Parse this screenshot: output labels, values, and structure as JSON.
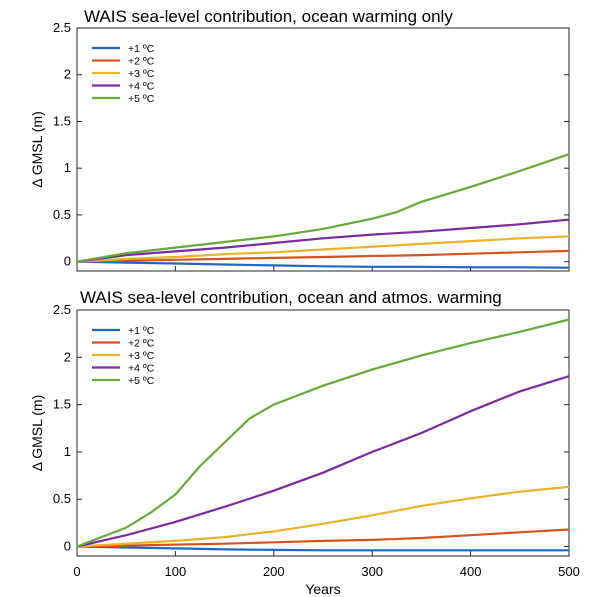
{
  "chart_data": [
    {
      "type": "line",
      "title": "WAIS sea-level contribution, ocean warming only",
      "xlabel": "",
      "ylabel": "Δ GMSL (m)",
      "xlim": [
        0,
        500
      ],
      "ylim": [
        -0.1,
        2.5
      ],
      "xticks": [],
      "yticks": [
        0,
        0.5,
        1,
        1.5,
        2,
        2.5
      ],
      "ytick_labels": [
        "0",
        "0.5",
        "1",
        "1.5",
        "2",
        "2.5"
      ],
      "grid": false,
      "legend_position": "top-left",
      "series": [
        {
          "name": "+1 ºC",
          "color": "#2166c4",
          "x": [
            0,
            50,
            100,
            150,
            200,
            250,
            300,
            350,
            400,
            450,
            500
          ],
          "y": [
            0,
            -0.01,
            -0.02,
            -0.03,
            -0.04,
            -0.05,
            -0.055,
            -0.055,
            -0.06,
            -0.06,
            -0.065
          ]
        },
        {
          "name": "+2 ºC",
          "color": "#d2541f",
          "x": [
            0,
            50,
            100,
            150,
            200,
            250,
            300,
            350,
            400,
            450,
            500
          ],
          "y": [
            0,
            0.01,
            0.02,
            0.03,
            0.04,
            0.05,
            0.06,
            0.07,
            0.085,
            0.1,
            0.115
          ]
        },
        {
          "name": "+3 ºC",
          "color": "#eab22a",
          "x": [
            0,
            50,
            100,
            150,
            200,
            250,
            300,
            350,
            400,
            450,
            500
          ],
          "y": [
            0,
            0.03,
            0.05,
            0.08,
            0.1,
            0.13,
            0.16,
            0.19,
            0.22,
            0.25,
            0.27
          ]
        },
        {
          "name": "+4 ºC",
          "color": "#7a2b9c",
          "x": [
            0,
            50,
            100,
            150,
            200,
            250,
            300,
            350,
            400,
            450,
            500
          ],
          "y": [
            0,
            0.07,
            0.11,
            0.15,
            0.2,
            0.25,
            0.29,
            0.32,
            0.36,
            0.4,
            0.45
          ]
        },
        {
          "name": "+5 ºC",
          "color": "#6aa83a",
          "x": [
            0,
            50,
            100,
            150,
            200,
            250,
            300,
            325,
            350,
            400,
            450,
            500
          ],
          "y": [
            0,
            0.09,
            0.15,
            0.21,
            0.27,
            0.35,
            0.46,
            0.53,
            0.64,
            0.8,
            0.97,
            1.15
          ]
        }
      ]
    },
    {
      "type": "line",
      "title": "WAIS sea-level contribution, ocean and atmos. warming",
      "xlabel": "Years",
      "ylabel": "Δ GMSL (m)",
      "xlim": [
        0,
        500
      ],
      "ylim": [
        -0.1,
        2.5
      ],
      "xticks": [
        0,
        100,
        200,
        300,
        400,
        500
      ],
      "xtick_labels": [
        "0",
        "100",
        "200",
        "300",
        "400",
        "500"
      ],
      "yticks": [
        0,
        0.5,
        1,
        1.5,
        2,
        2.5
      ],
      "ytick_labels": [
        "0",
        "0.5",
        "1",
        "1.5",
        "2",
        "2.5"
      ],
      "grid": false,
      "legend_position": "top-left",
      "series": [
        {
          "name": "+1 ºC",
          "color": "#2166c4",
          "x": [
            0,
            50,
            100,
            150,
            200,
            250,
            300,
            350,
            400,
            450,
            500
          ],
          "y": [
            0,
            -0.01,
            -0.02,
            -0.03,
            -0.035,
            -0.04,
            -0.04,
            -0.04,
            -0.04,
            -0.04,
            -0.04
          ]
        },
        {
          "name": "+2 ºC",
          "color": "#d2541f",
          "x": [
            0,
            50,
            100,
            150,
            200,
            250,
            300,
            350,
            400,
            450,
            500
          ],
          "y": [
            0,
            0.01,
            0.02,
            0.03,
            0.045,
            0.06,
            0.07,
            0.09,
            0.12,
            0.15,
            0.18
          ]
        },
        {
          "name": "+3 ºC",
          "color": "#eab22a",
          "x": [
            0,
            50,
            100,
            150,
            200,
            250,
            300,
            350,
            400,
            450,
            500
          ],
          "y": [
            0,
            0.03,
            0.06,
            0.1,
            0.16,
            0.24,
            0.33,
            0.43,
            0.51,
            0.58,
            0.63
          ]
        },
        {
          "name": "+4 ºC",
          "color": "#7a2b9c",
          "x": [
            0,
            50,
            100,
            150,
            200,
            250,
            300,
            350,
            400,
            450,
            500
          ],
          "y": [
            0,
            0.12,
            0.26,
            0.42,
            0.59,
            0.78,
            1.0,
            1.2,
            1.43,
            1.64,
            1.8
          ]
        },
        {
          "name": "+5 ºC",
          "color": "#6aa83a",
          "x": [
            0,
            50,
            75,
            100,
            125,
            150,
            175,
            200,
            250,
            300,
            350,
            400,
            450,
            500
          ],
          "y": [
            0,
            0.2,
            0.36,
            0.55,
            0.85,
            1.1,
            1.35,
            1.5,
            1.7,
            1.87,
            2.02,
            2.15,
            2.27,
            2.4
          ]
        }
      ]
    }
  ]
}
